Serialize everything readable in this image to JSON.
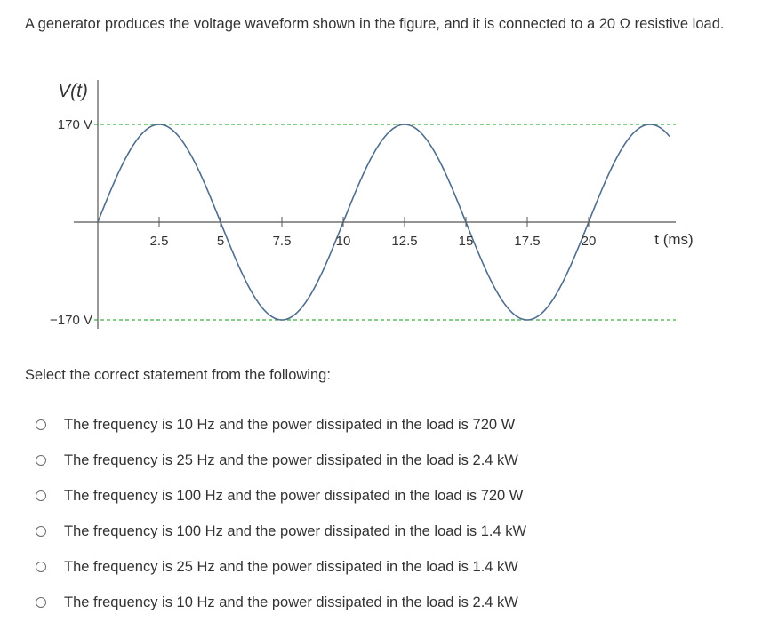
{
  "question": "A generator produces the voltage waveform shown in the figure, and it is connected to a 20 Ω resistive load.",
  "prompt": "Select the correct statement from the following:",
  "options": [
    "The frequency is 10 Hz and the power dissipated in the load is 720 W",
    "The frequency is 25 Hz and the power dissipated in the load is 2.4 kW",
    "The frequency is 100 Hz and the power dissipated in the load is 720 W",
    "The frequency is 100 Hz and the power dissipated in the load is 1.4 kW",
    "The frequency is 25 Hz and the power dissipated in the load is 1.4 kW",
    "The frequency is 10 Hz and the power dissipated in the load is 2.4 kW"
  ],
  "chart_data": {
    "type": "line",
    "ylabel": "V(t)",
    "xlabel": "t (ms)",
    "ytick_labels": [
      "170 V",
      "−170 V"
    ],
    "ytick_values": [
      170,
      -170
    ],
    "xtick_labels": [
      "2.5",
      "5",
      "7.5",
      "10",
      "12.5",
      "15",
      "17.5",
      "20"
    ],
    "xtick_values": [
      2.5,
      5,
      7.5,
      10,
      12.5,
      15,
      17.5,
      20
    ],
    "amplitude": 170,
    "period": 10,
    "xlim": [
      0,
      23.3
    ],
    "ylim": [
      -170,
      170
    ],
    "colors": {
      "curve": "#4f6e8f",
      "reference": "#3cb043",
      "axis": "#555555"
    }
  }
}
